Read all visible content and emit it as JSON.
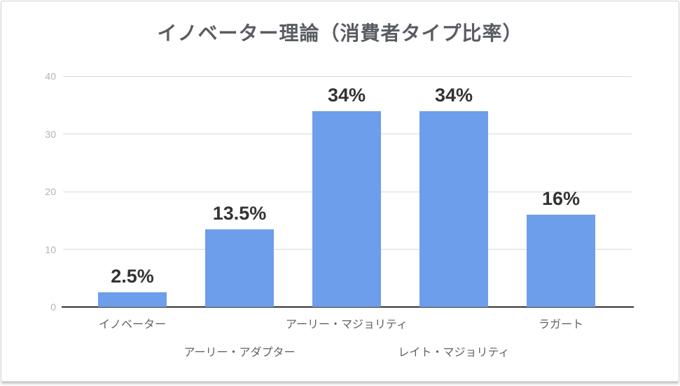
{
  "chart_data": {
    "type": "bar",
    "title": "イノベーター理論（消費者タイプ比率）",
    "categories": [
      "イノベーター",
      "アーリー・アダプター",
      "アーリー・マジョリティ",
      "レイト・マジョリティ",
      "ラガート"
    ],
    "values": [
      2.5,
      13.5,
      34,
      34,
      16
    ],
    "data_labels": [
      "2.5%",
      "13.5%",
      "34%",
      "34%",
      "16%"
    ],
    "y_ticks": [
      0,
      10,
      20,
      30,
      40
    ],
    "ylim": [
      0,
      40
    ],
    "xlabel": "",
    "ylabel": "",
    "grid": true,
    "legend": false,
    "colors": {
      "bar": "#6d9eeb",
      "gridline": "#d9d9d9",
      "axis_line": "#333333",
      "title": "#595c63",
      "value_label": "#333333",
      "tick_label": "#b3b3b3",
      "category_label": "#5f6368"
    }
  }
}
